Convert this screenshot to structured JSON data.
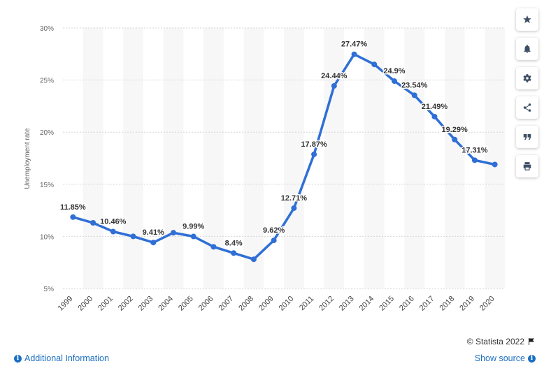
{
  "chart_data": {
    "type": "line",
    "ylabel": "Unemployment rate",
    "xlabel": "",
    "ylim": [
      5,
      30
    ],
    "yticks": [
      5,
      10,
      15,
      20,
      25,
      30
    ],
    "ytick_labels": [
      "5%",
      "10%",
      "15%",
      "20%",
      "25%",
      "30%"
    ],
    "categories": [
      "1999",
      "2000",
      "2001",
      "2002",
      "2003",
      "2004",
      "2005",
      "2006",
      "2007",
      "2008",
      "2009",
      "2010",
      "2011",
      "2012",
      "2013",
      "2014",
      "2015",
      "2016",
      "2017",
      "2018",
      "2019",
      "2020"
    ],
    "series": [
      {
        "name": "Unemployment rate",
        "color": "#2f6fd6",
        "values": [
          11.85,
          11.3,
          10.46,
          10.0,
          9.41,
          10.35,
          9.99,
          9.0,
          8.4,
          7.8,
          9.62,
          12.71,
          17.87,
          24.44,
          27.47,
          26.5,
          24.9,
          23.54,
          21.49,
          19.29,
          17.31,
          16.9
        ],
        "data_labels": [
          "11.85%",
          "",
          "10.46%",
          "",
          "9.41%",
          "",
          "9.99%",
          "",
          "8.4%",
          "",
          "9.62%",
          "12.71%",
          "17.87%",
          "24.44%",
          "27.47%",
          "",
          "24.9%",
          "23.54%",
          "21.49%",
          "19.29%",
          "17.31%",
          ""
        ]
      }
    ],
    "grid": true,
    "legend": "none"
  },
  "toolbar": {
    "star": "star-icon",
    "bell": "bell-icon",
    "gear": "gear-icon",
    "share": "share-icon",
    "quote": "quote-icon",
    "print": "print-icon"
  },
  "footer": {
    "credit": "© Statista 2022",
    "additional_info": "Additional Information",
    "show_source": "Show source"
  }
}
